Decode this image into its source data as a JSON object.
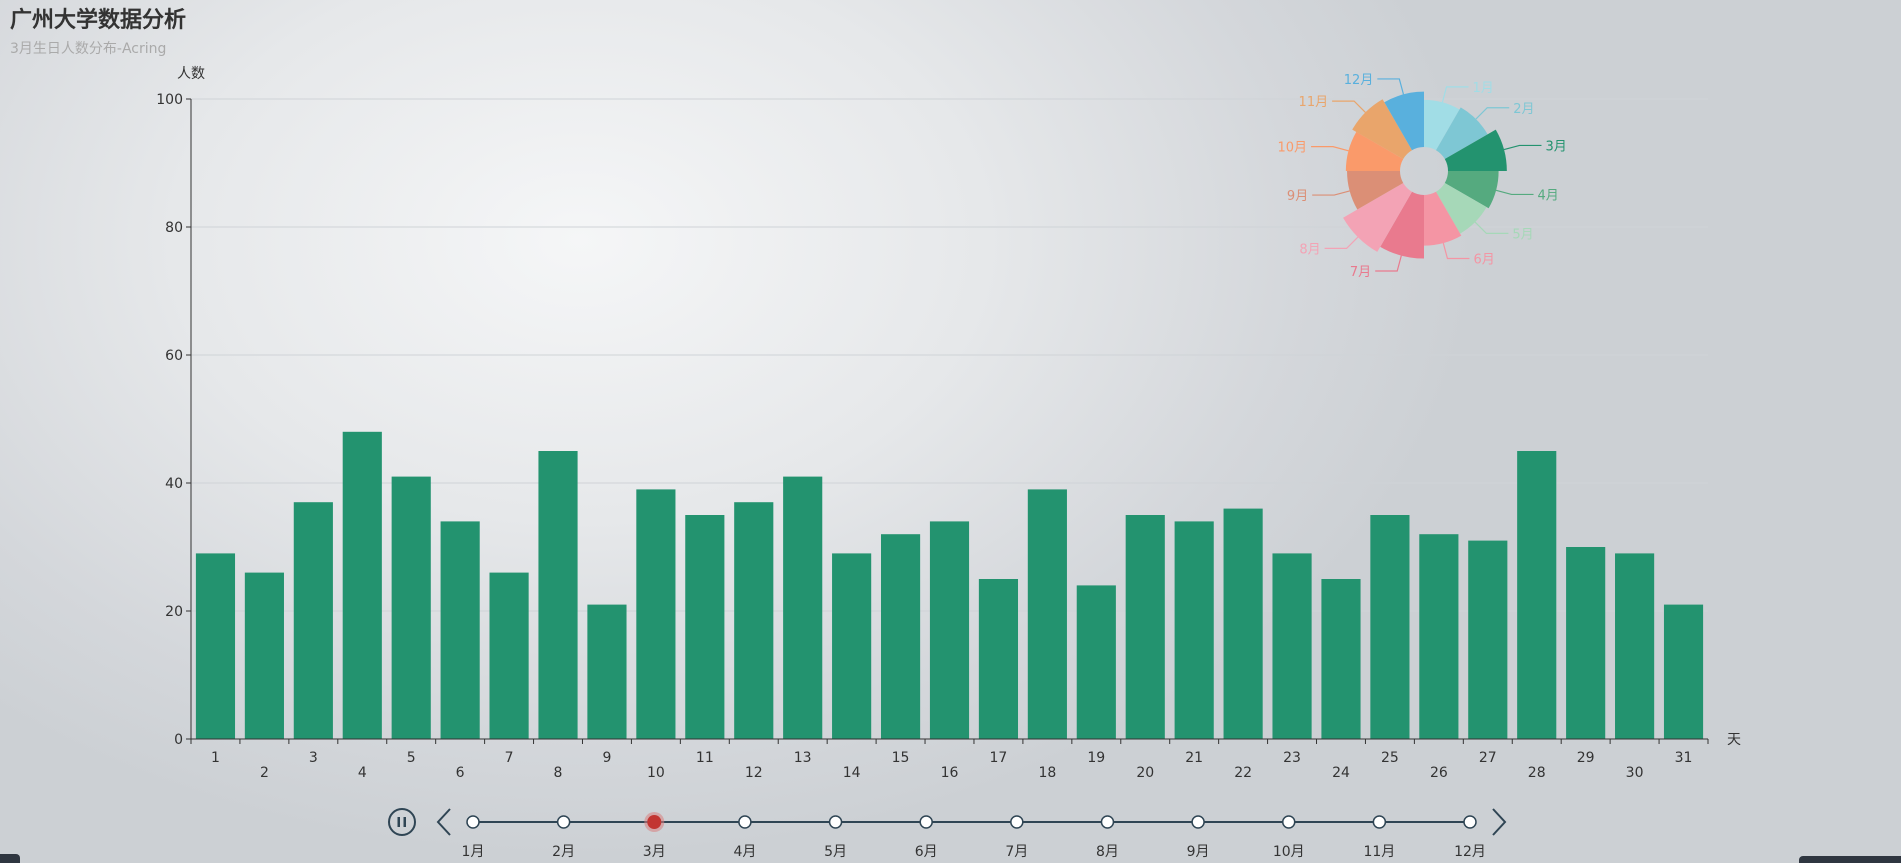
{
  "title": "广州大学数据分析",
  "subtitle": "3月生日人数分布-Acring",
  "colors": {
    "bar": "#23936f",
    "axis": "#333333",
    "grid": "#cfd3d7",
    "timeline_line": "#2f4554",
    "timeline_active": "#c23531"
  },
  "chart_data": [
    {
      "type": "bar",
      "title": "广州大学数据分析",
      "subtitle": "3月生日人数分布-Acring",
      "xlabel": "天",
      "ylabel": "人数",
      "ylim": [
        0,
        100
      ],
      "yticks": [
        0,
        20,
        40,
        60,
        80,
        100
      ],
      "grid": true,
      "categories": [
        "1",
        "2",
        "3",
        "4",
        "5",
        "6",
        "7",
        "8",
        "9",
        "10",
        "11",
        "12",
        "13",
        "14",
        "15",
        "16",
        "17",
        "18",
        "19",
        "20",
        "21",
        "22",
        "23",
        "24",
        "25",
        "26",
        "27",
        "28",
        "29",
        "30",
        "31"
      ],
      "values": [
        29,
        26,
        37,
        48,
        41,
        34,
        26,
        45,
        21,
        39,
        35,
        37,
        41,
        29,
        32,
        34,
        25,
        39,
        24,
        35,
        34,
        36,
        29,
        25,
        35,
        32,
        31,
        45,
        30,
        29,
        21
      ]
    },
    {
      "type": "pie",
      "style": "rose",
      "legend_position": "top-right",
      "categories": [
        "1月",
        "2月",
        "3月",
        "4月",
        "5月",
        "6月",
        "7月",
        "8月",
        "9月",
        "10月",
        "11月",
        "12月"
      ],
      "values": [
        80,
        84,
        100,
        86,
        82,
        86,
        108,
        118,
        90,
        92,
        100,
        94
      ],
      "colors": [
        "#a1dde6",
        "#7ec7d4",
        "#23936f",
        "#55aa7f",
        "#a6d8b8",
        "#f495a4",
        "#e97a8e",
        "#f3a3b5",
        "#db8f76",
        "#fa9a6a",
        "#e9a56b",
        "#59b0dd"
      ]
    }
  ],
  "timeline": {
    "months": [
      "1月",
      "2月",
      "3月",
      "4月",
      "5月",
      "6月",
      "7月",
      "8月",
      "9月",
      "10月",
      "11月",
      "12月"
    ],
    "current_index": 2,
    "play_icon": "pause-icon",
    "prev_icon": "chevron-left-icon",
    "next_icon": "chevron-right-icon"
  }
}
